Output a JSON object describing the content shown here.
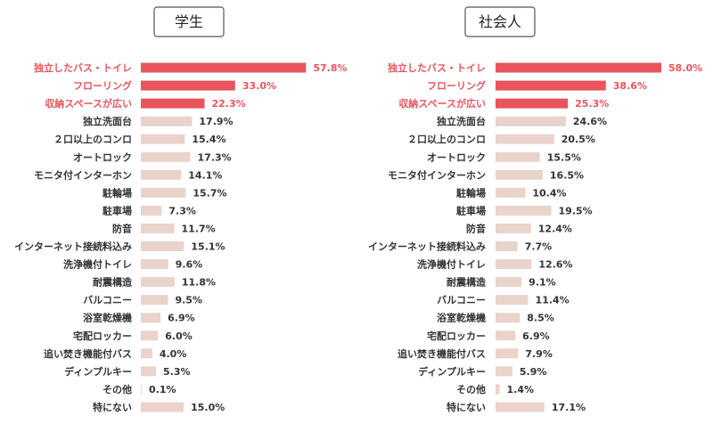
{
  "chart_data": [
    {
      "type": "bar",
      "orientation": "horizontal",
      "title": "学生",
      "categories": [
        "独立したバス・トイレ",
        "フローリング",
        "収納スペースが広い",
        "独立洗面台",
        "２口以上のコンロ",
        "オートロック",
        "モニタ付インターホン",
        "駐輪場",
        "駐車場",
        "防音",
        "インターネット接続料込み",
        "洗浄機付トイレ",
        "耐震構造",
        "バルコニー",
        "浴室乾燥機",
        "宅配ロッカー",
        "追い焚き機能付バス",
        "ディンプルキー",
        "その他",
        "特にない"
      ],
      "values": [
        57.8,
        33.0,
        22.3,
        17.9,
        15.4,
        17.3,
        14.1,
        15.7,
        7.3,
        11.7,
        15.1,
        9.6,
        11.8,
        9.5,
        6.9,
        6.0,
        4.0,
        5.3,
        0.1,
        15.0
      ],
      "value_labels": [
        "57.8%",
        "33.0%",
        "22.3%",
        "17.9%",
        "15.4%",
        "17.3%",
        "14.1%",
        "15.7%",
        "7.3%",
        "11.7%",
        "15.1%",
        "9.6%",
        "11.8%",
        "9.5%",
        "6.9%",
        "6.0%",
        "4.0%",
        "5.3%",
        "0.1%",
        "15.0%"
      ],
      "highlight_count": 3,
      "xlim": [
        0,
        58
      ]
    },
    {
      "type": "bar",
      "orientation": "horizontal",
      "title": "社会人",
      "categories": [
        "独立したバス・トイレ",
        "フローリング",
        "収納スペースが広い",
        "独立洗面台",
        "２口以上のコンロ",
        "オートロック",
        "モニタ付インターホン",
        "駐輪場",
        "駐車場",
        "防音",
        "インターネット接続料込み",
        "洗浄機付トイレ",
        "耐震構造",
        "バルコニー",
        "浴室乾燥機",
        "宅配ロッカー",
        "追い焚き機能付バス",
        "ディンプルキー",
        "その他",
        "特にない"
      ],
      "values": [
        58.0,
        38.6,
        25.3,
        24.6,
        20.5,
        15.5,
        16.5,
        10.4,
        19.5,
        12.4,
        7.7,
        12.6,
        9.1,
        11.4,
        8.5,
        6.9,
        7.9,
        5.9,
        1.4,
        17.1
      ],
      "value_labels": [
        "58.0%",
        "38.6%",
        "25.3%",
        "24.6%",
        "20.5%",
        "15.5%",
        "16.5%",
        "10.4%",
        "19.5%",
        "12.4%",
        "7.7%",
        "12.6%",
        "9.1%",
        "11.4%",
        "8.5%",
        "6.9%",
        "7.9%",
        "5.9%",
        "1.4%",
        "17.1%"
      ],
      "highlight_count": 3,
      "xlim": [
        0,
        58
      ]
    }
  ],
  "colors": {
    "highlight": "#e8555c",
    "normal": "#e9d3ca",
    "highlight_text": "#e8555c",
    "normal_text": "#333333"
  }
}
